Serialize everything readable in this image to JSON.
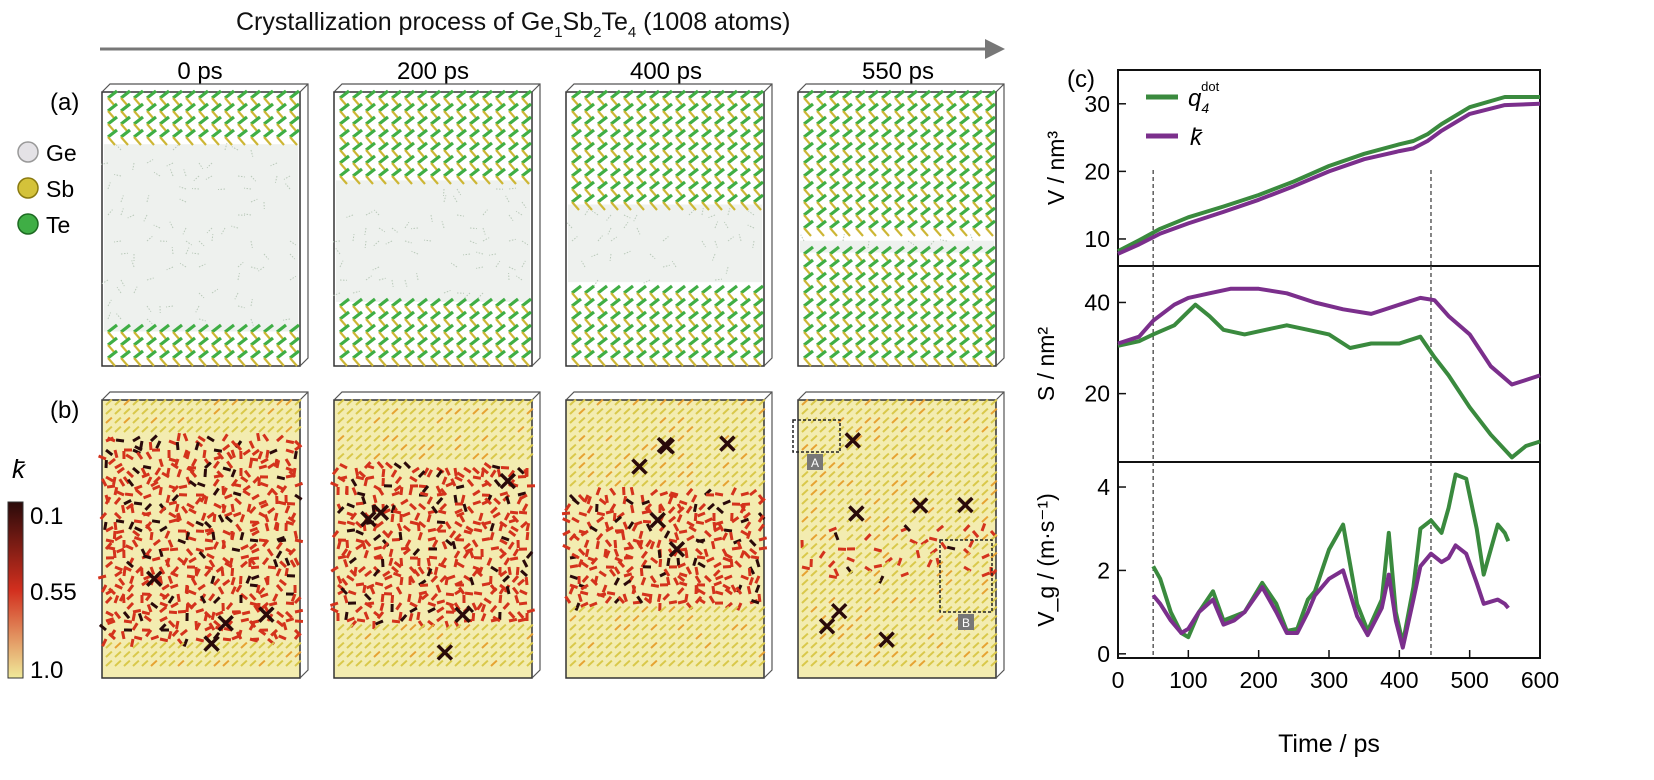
{
  "header": {
    "title_pre": "Crystallization process of Ge",
    "title_sub1": "1",
    "title_mid1": "Sb",
    "title_sub2": "2",
    "title_mid2": "Te",
    "title_sub3": "4",
    "title_post": " (1008 atoms)"
  },
  "panels": {
    "a_label": "(a)",
    "b_label": "(b)",
    "c_label": "(c)",
    "times": [
      "0 ps",
      "200 ps",
      "400 ps",
      "550 ps"
    ],
    "crystal_fraction": [
      0.28,
      0.52,
      0.68,
      0.92
    ],
    "ordered_fraction_b": [
      0.18,
      0.38,
      0.6,
      0.88
    ],
    "box_marks": [
      "A",
      "B"
    ]
  },
  "legend_atoms": [
    {
      "label": "Ge",
      "color": "#e4e2e6"
    },
    {
      "label": "Sb",
      "color": "#d4c23a"
    },
    {
      "label": "Te",
      "color": "#3fae45"
    }
  ],
  "colorbar": {
    "symbol": "k̄",
    "ticks": [
      "0.1",
      "0.55",
      "1.0"
    ],
    "colors": [
      "#2a0a0a",
      "#d22f1e",
      "#f0ea9a"
    ]
  },
  "colors": {
    "q4": "#3a8a3e",
    "kbar": "#7b2f8c",
    "bond_green": "#3fae45",
    "bond_yellow": "#cdb634",
    "red": "#d4321c",
    "dark": "#2a0a0a"
  },
  "chart_data": {
    "type": "line",
    "xlabel": "Time / ps",
    "x_ticks": [
      "0",
      "100",
      "200",
      "300",
      "400",
      "500",
      "600"
    ],
    "xlim": [
      0,
      600
    ],
    "vlines": [
      50,
      445
    ],
    "legend": [
      {
        "name_base": "q",
        "name_sub": "4",
        "name_sup": "dot",
        "color": "#3a8a3e"
      },
      {
        "name_base": "k̄",
        "name_sub": "",
        "name_sup": "",
        "color": "#7b2f8c"
      }
    ],
    "subplots": [
      {
        "ylabel": "V / nm³",
        "ylim": [
          6,
          35
        ],
        "yticks": [
          "10",
          "20",
          "30"
        ],
        "series": [
          {
            "key": "q4",
            "x": [
              0,
              30,
              60,
              100,
              150,
              200,
              250,
              300,
              350,
              400,
              420,
              440,
              460,
              500,
              550,
              600
            ],
            "y": [
              8.2,
              9.8,
              11.5,
              13.2,
              14.8,
              16.5,
              18.5,
              20.8,
              22.6,
              24,
              24.5,
              25.5,
              27,
              29.5,
              31,
              31
            ]
          },
          {
            "key": "kbar",
            "x": [
              0,
              30,
              60,
              100,
              150,
              200,
              250,
              300,
              350,
              400,
              420,
              440,
              460,
              500,
              550,
              600
            ],
            "y": [
              7.8,
              9.2,
              10.8,
              12.3,
              14,
              15.8,
              17.8,
              20,
              21.8,
              23,
              23.4,
              24.5,
              26,
              28.5,
              29.8,
              30
            ]
          }
        ]
      },
      {
        "ylabel": "S / nm²",
        "ylim": [
          5,
          48
        ],
        "yticks": [
          "20",
          "40"
        ],
        "series": [
          {
            "key": "q4",
            "x": [
              0,
              30,
              50,
              80,
              100,
              110,
              130,
              150,
              180,
              210,
              240,
              270,
              300,
              330,
              360,
              400,
              430,
              450,
              470,
              500,
              530,
              560,
              580,
              600
            ],
            "y": [
              30.5,
              31.5,
              33,
              35,
              38,
              39.5,
              37,
              34,
              33,
              34,
              35,
              34,
              33,
              30,
              31,
              31,
              32.5,
              28,
              24,
              17,
              11,
              6,
              8.5,
              9.5
            ]
          },
          {
            "key": "kbar",
            "x": [
              0,
              30,
              50,
              80,
              100,
              130,
              160,
              200,
              240,
              280,
              320,
              360,
              400,
              430,
              450,
              470,
              500,
              530,
              560,
              580,
              600
            ],
            "y": [
              31,
              32.5,
              36,
              39.5,
              41,
              42,
              43,
              43,
              42,
              40,
              38.5,
              37.5,
              39.5,
              41,
              40.5,
              37,
              33,
              26,
              22,
              23,
              24
            ]
          }
        ]
      },
      {
        "ylabel": "V_g / (m·s⁻¹)",
        "ylim": [
          -0.1,
          4.6
        ],
        "yticks": [
          "0",
          "2",
          "4"
        ],
        "series": [
          {
            "key": "q4",
            "x": [
              50,
              60,
              75,
              90,
              100,
              115,
              135,
              150,
              165,
              180,
              205,
              225,
              240,
              255,
              270,
              280,
              300,
              320,
              340,
              355,
              375,
              385,
              395,
              405,
              420,
              430,
              445,
              460,
              470,
              480,
              495,
              510,
              520,
              540,
              550,
              555
            ],
            "y": [
              2.1,
              1.8,
              1.0,
              0.5,
              0.4,
              1.0,
              1.5,
              0.8,
              0.9,
              1.0,
              1.7,
              1.2,
              0.55,
              0.6,
              1.3,
              1.5,
              2.5,
              3.1,
              1.2,
              0.55,
              1.3,
              2.9,
              1.0,
              0.25,
              1.6,
              3.0,
              3.2,
              2.9,
              3.5,
              4.3,
              4.2,
              3.0,
              1.9,
              3.1,
              2.9,
              2.7
            ]
          },
          {
            "key": "kbar",
            "x": [
              50,
              60,
              75,
              90,
              100,
              115,
              135,
              150,
              165,
              180,
              205,
              225,
              240,
              255,
              270,
              280,
              300,
              320,
              340,
              355,
              375,
              385,
              395,
              405,
              420,
              430,
              445,
              460,
              470,
              480,
              495,
              510,
              520,
              540,
              550,
              555
            ],
            "y": [
              1.4,
              1.2,
              0.8,
              0.5,
              0.6,
              1.0,
              1.3,
              0.7,
              0.8,
              1.0,
              1.6,
              1.0,
              0.5,
              0.5,
              1.0,
              1.4,
              1.8,
              2.0,
              0.9,
              0.45,
              1.1,
              1.9,
              0.8,
              0.15,
              1.3,
              2.1,
              2.4,
              2.2,
              2.3,
              2.6,
              2.4,
              1.7,
              1.2,
              1.3,
              1.2,
              1.1
            ]
          }
        ]
      }
    ]
  }
}
